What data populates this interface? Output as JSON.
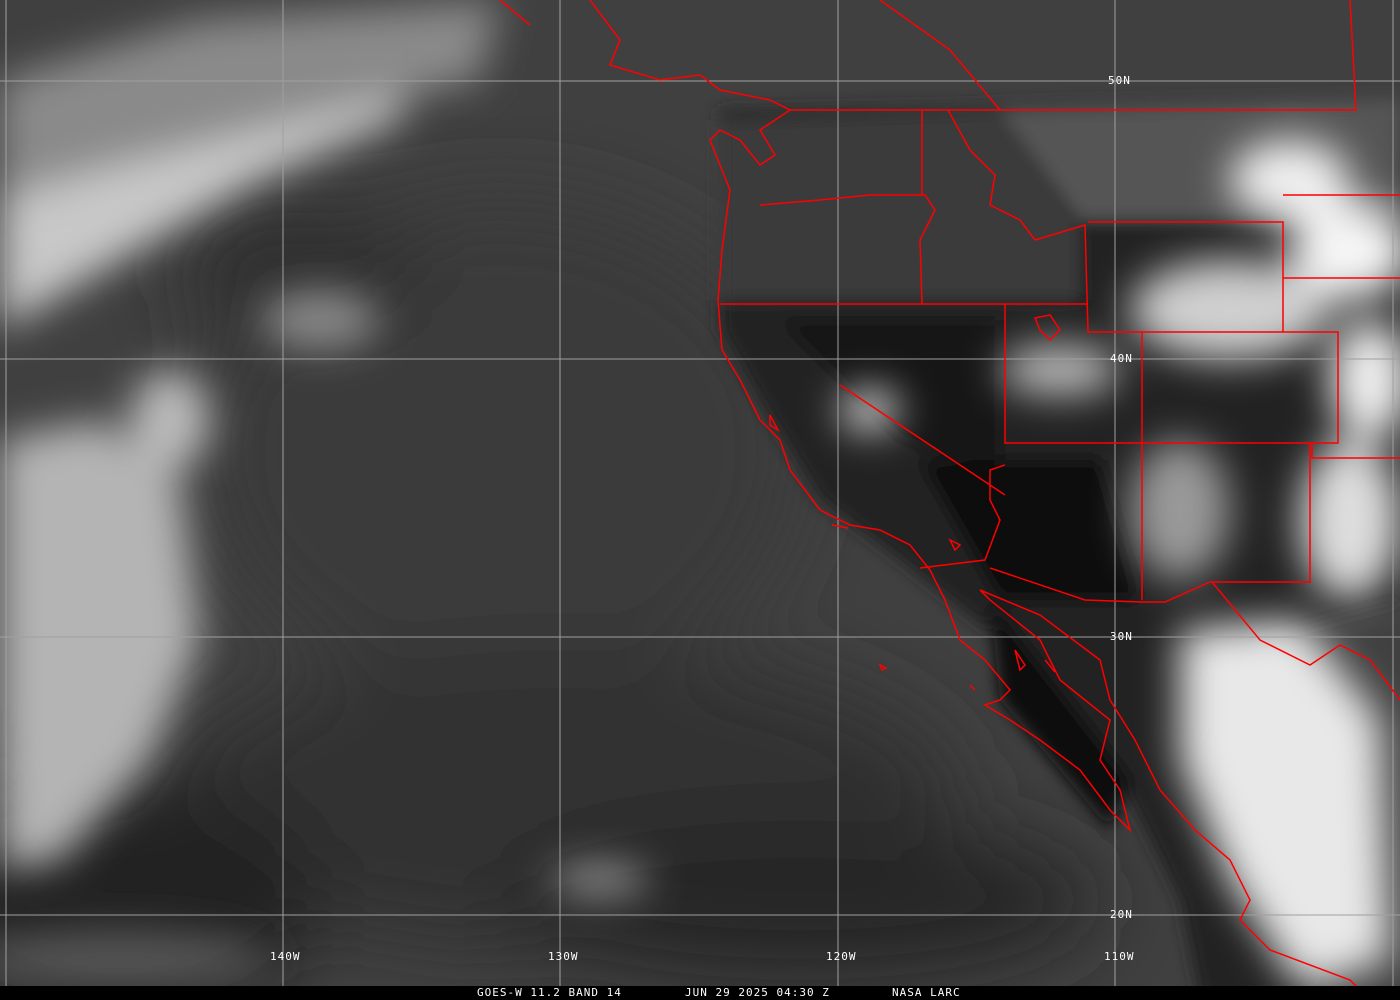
{
  "map": {
    "product": "GOES-W 11.2 BAND 14",
    "datetime": "JUN 29 2025 04:30 Z",
    "source": "NASA LARC",
    "latitude_labels": [
      "50N",
      "40N",
      "30N",
      "20N"
    ],
    "longitude_labels": [
      "140W",
      "130W",
      "120W",
      "110W"
    ],
    "border_color": "#ff0000",
    "grid_color": "#a0a0a0"
  }
}
